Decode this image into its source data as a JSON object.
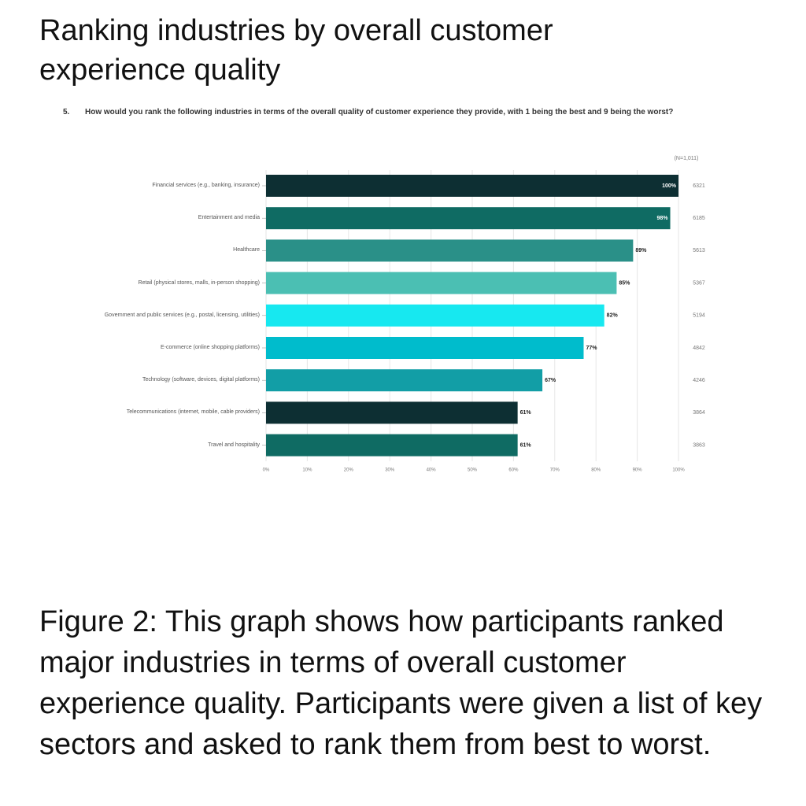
{
  "page": {
    "heading": "Ranking industries by overall customer experience quality",
    "caption": "Figure 2: This graph shows how participants ranked major industries in terms of overall customer experience quality. Participants were given a list of key sectors and asked to rank them from best to worst."
  },
  "chart_data": {
    "type": "bar",
    "orientation": "horizontal",
    "question_number": "5.",
    "question": "How would you rank the following industries in terms of the overall quality of customer experience they provide, with 1 being the best and 9 being the worst?",
    "annotation": "(N=1,011)",
    "categories": [
      "Financial services (e.g., banking, insurance)",
      "Entertainment and media",
      "Healthcare",
      "Retail (physical stores, malls, in-person shopping)",
      "Government and public services (e.g., postal, licensing, utilities)",
      "E-commerce (online shopping platforms)",
      "Technology (software, devices, digital platforms)",
      "Telecommunications (internet, mobile, cable providers)",
      "Travel and hospitality"
    ],
    "values": [
      100,
      98,
      89,
      85,
      82,
      77,
      67,
      61,
      61
    ],
    "value_labels": [
      "100%",
      "98%",
      "89%",
      "85%",
      "82%",
      "77%",
      "67%",
      "61%",
      "61%"
    ],
    "counts": [
      6321,
      6185,
      5613,
      5367,
      5194,
      4842,
      4246,
      3864,
      3863
    ],
    "colors": [
      "#0d2f33",
      "#0f6b63",
      "#2a9088",
      "#4bbfb3",
      "#17e8f0",
      "#00bccc",
      "#129ea6",
      "#0d2f33",
      "#0f6b63"
    ],
    "xlim": [
      0,
      100
    ],
    "xticks": [
      {
        "value": 0,
        "label": "0%"
      },
      {
        "value": 10,
        "label": "10%"
      },
      {
        "value": 20,
        "label": "20%"
      },
      {
        "value": 30,
        "label": "30%"
      },
      {
        "value": 40,
        "label": "40%"
      },
      {
        "value": 50,
        "label": "50%"
      },
      {
        "value": 60,
        "label": "60%"
      },
      {
        "value": 70,
        "label": "70%"
      },
      {
        "value": 80,
        "label": "80%"
      },
      {
        "value": 90,
        "label": "90%"
      },
      {
        "value": 100,
        "label": "100%"
      }
    ],
    "grid": true
  }
}
